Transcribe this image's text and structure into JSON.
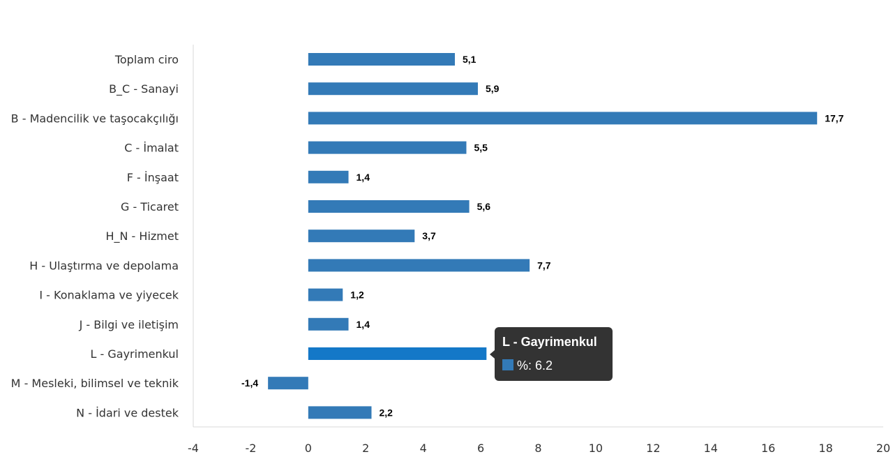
{
  "colors": {
    "bar": "#337AB7",
    "bar_highlight": "#1478C8",
    "axis": "#D9D9D9",
    "tooltip_bg": "#333333"
  },
  "chart_data": {
    "type": "bar",
    "orientation": "horizontal",
    "categories": [
      "Toplam ciro",
      "B_C - Sanayi",
      "B - Madencilik ve taşocakçılığı",
      "C - İmalat",
      "F - İnşaat",
      "G - Ticaret",
      "H_N - Hizmet",
      "H - Ulaştırma ve depolama",
      "I - Konaklama ve yiyecek",
      "J - Bilgi ve iletişim",
      "L - Gayrimenkul",
      "M - Mesleki, bilimsel ve teknik",
      "N - İdari ve destek"
    ],
    "values": [
      5.1,
      5.9,
      17.7,
      5.5,
      1.4,
      5.6,
      3.7,
      7.7,
      1.2,
      1.4,
      6.2,
      -1.4,
      2.2
    ],
    "value_labels": [
      "5,1",
      "5,9",
      "17,7",
      "5,5",
      "1,4",
      "5,6",
      "3,7",
      "7,7",
      "1,2",
      "1,4",
      "6,2",
      "-1,4",
      "2,2"
    ],
    "xlim": [
      -4,
      20
    ],
    "xticks": [
      -4,
      -2,
      0,
      2,
      4,
      6,
      8,
      10,
      12,
      14,
      16,
      18,
      20
    ],
    "grid": false,
    "legend": "none"
  },
  "tooltip": {
    "title": "L - Gayrimenkul",
    "text": "%: 6.2",
    "category_index": 10
  }
}
